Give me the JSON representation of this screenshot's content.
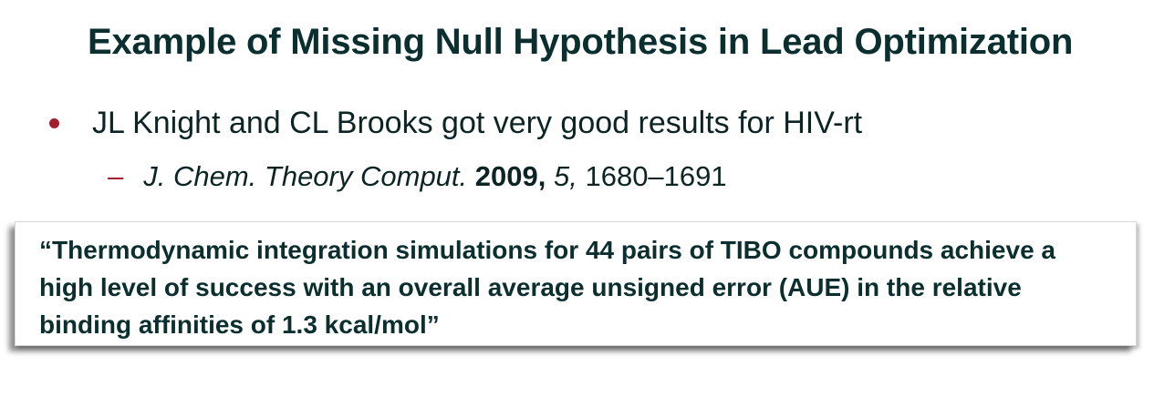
{
  "slide": {
    "title": "Example of Missing Null Hypothesis in Lead Optimization",
    "bullet": {
      "text": "JL Knight and CL Brooks got very good results for HIV-rt"
    },
    "sub_bullet": {
      "dash": "–",
      "journal": "J. Chem. Theory Comput.",
      "year": "2009,",
      "volume": "5,",
      "pages": "1680–1691"
    },
    "quote": {
      "text": "“Thermodynamic integration simulations for 44 pairs of TIBO compounds achieve a high level of success with an overall average unsigned error (AUE) in the relative binding affinities of 1.3 kcal/mol”"
    }
  },
  "colors": {
    "title": "#0b2e2e",
    "text": "#0c2424",
    "accent": "#a31d2c"
  }
}
